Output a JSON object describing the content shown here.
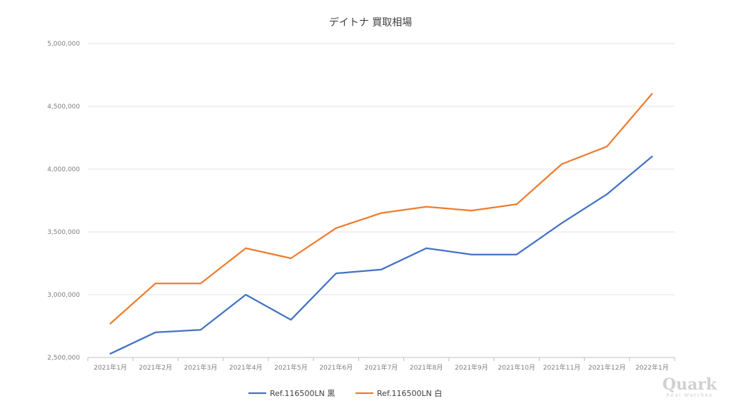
{
  "chart_data": {
    "type": "line",
    "title": "デイトナ 買取相場",
    "categories": [
      "2021年1月",
      "2021年2月",
      "2021年3月",
      "2021年4月",
      "2021年5月",
      "2021年6月",
      "2021年7月",
      "2021年8月",
      "2021年9月",
      "2021年10月",
      "2021年11月",
      "2021年12月",
      "2022年1月"
    ],
    "series": [
      {
        "name": "Ref.116500LN 黒",
        "color": "#4472c4",
        "values": [
          2530000,
          2700000,
          2720000,
          3000000,
          2800000,
          3170000,
          3200000,
          3370000,
          3320000,
          3320000,
          3570000,
          3800000,
          4100000
        ]
      },
      {
        "name": "Ref.116500LN 白",
        "color": "#ed7d31",
        "values": [
          2770000,
          3090000,
          3090000,
          3370000,
          3290000,
          3530000,
          3650000,
          3700000,
          3670000,
          3720000,
          4040000,
          4180000,
          4600000
        ]
      }
    ],
    "yticks": [
      "2,500,000",
      "3,000,000",
      "3,500,000",
      "4,000,000",
      "4,500,000",
      "5,000,000"
    ],
    "ylim": [
      2500000,
      5000000
    ],
    "grid": true,
    "legend_position": "bottom"
  },
  "watermark": {
    "main": "Quark",
    "sub": "Real Watches"
  }
}
